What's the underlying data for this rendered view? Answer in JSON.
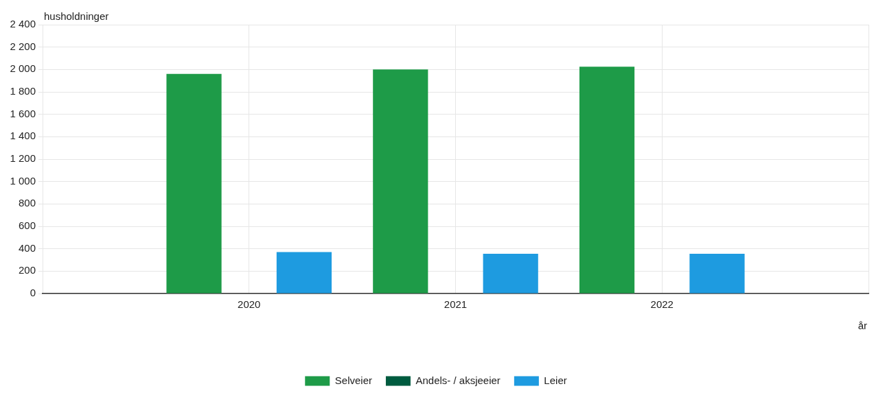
{
  "chart_data": {
    "type": "bar",
    "ylabel": "husholdninger",
    "xlabel": "år",
    "categories": [
      null,
      "2020",
      "2021",
      "2022",
      null
    ],
    "series": [
      {
        "name": "Selveier",
        "color": "#1e9b48",
        "values": [
          null,
          1960,
          2000,
          2025,
          null
        ]
      },
      {
        "name": "Andels- / aksjeeier",
        "color": "#005b3f",
        "values": [
          null,
          0,
          0,
          0,
          null
        ]
      },
      {
        "name": "Leier",
        "color": "#1e9be0",
        "values": [
          null,
          370,
          355,
          355,
          null
        ]
      }
    ],
    "ylim": [
      0,
      2400
    ],
    "yticks": [
      0,
      200,
      400,
      600,
      800,
      1000,
      1200,
      1400,
      1600,
      1800,
      2000,
      2200,
      2400
    ],
    "grid": true,
    "legend": "bottom"
  }
}
